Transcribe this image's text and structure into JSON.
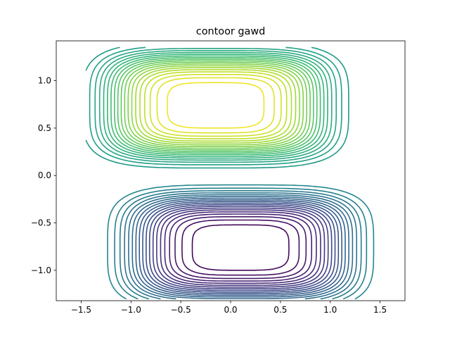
{
  "chart_data": {
    "type": "contour",
    "title": "contoor gawd",
    "xlabel": "",
    "ylabel": "",
    "xlim": [
      -1.75,
      1.75
    ],
    "ylim": [
      -1.32,
      1.42
    ],
    "xticks": [
      -1.5,
      -1.0,
      -0.5,
      0.0,
      0.5,
      1.0,
      1.5
    ],
    "xtick_labels": [
      "−1.5",
      "−1.0",
      "−0.5",
      "0.0",
      "0.5",
      "1.0",
      "1.5"
    ],
    "yticks": [
      -1.0,
      -0.5,
      0.0,
      0.5,
      1.0
    ],
    "ytick_labels": [
      "−1.0",
      "−0.5",
      "0.0",
      "0.5",
      "1.0"
    ],
    "colormap": "viridis",
    "grid": false,
    "legend": "none",
    "peaks": [
      {
        "label": "maximum",
        "x": -0.15,
        "y": 0.74,
        "color": "#fde725"
      },
      {
        "label": "minimum",
        "x": 0.1,
        "y": -0.76,
        "color": "#440154"
      }
    ],
    "contour_level_count": 40
  }
}
